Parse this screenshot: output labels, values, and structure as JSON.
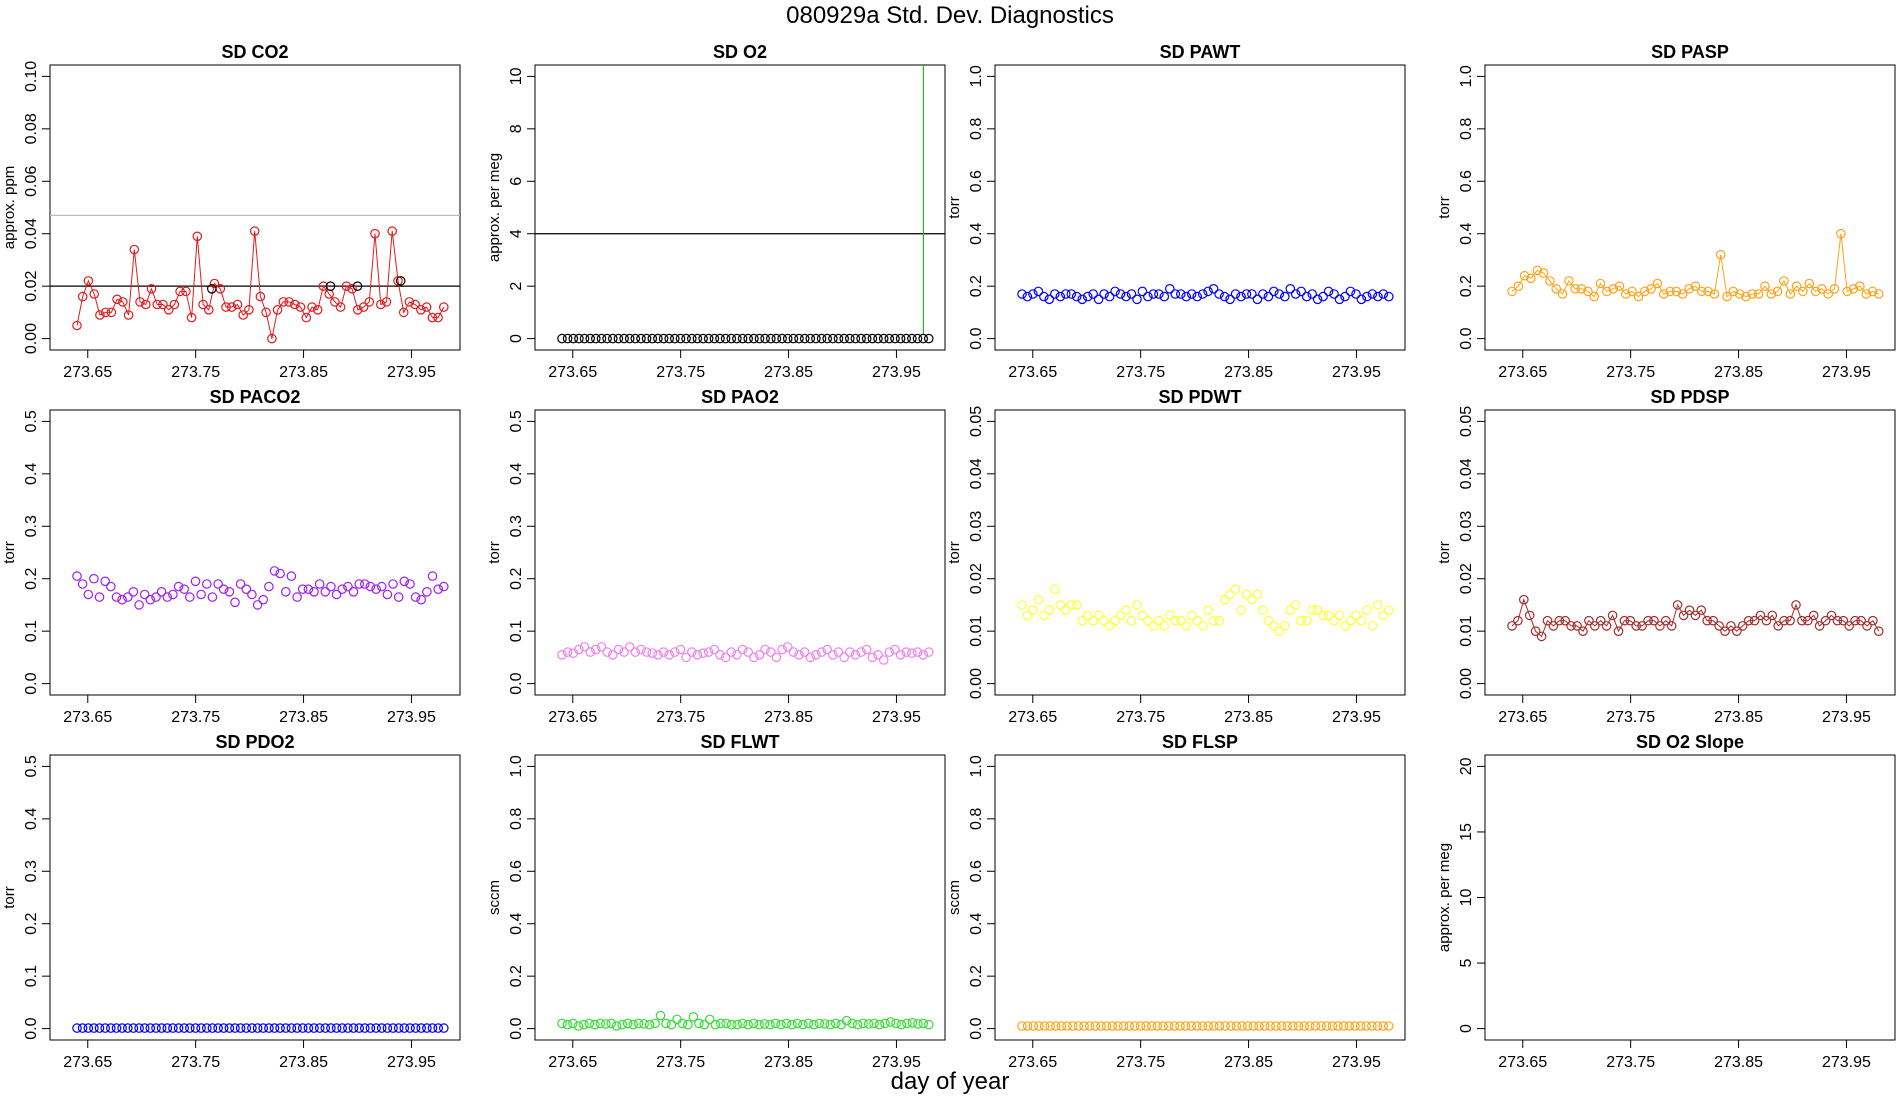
{
  "title": "080929a   Std. Dev. Diagnostics",
  "xlabel_global": "day of year",
  "x_ticks": [
    "273.65",
    "273.75",
    "273.85",
    "273.95"
  ],
  "chart_data": [
    {
      "type": "scatter",
      "title": "SD CO2",
      "ylabel": "approx. ppm",
      "ylim": [
        0,
        0.1
      ],
      "yticks": [
        "0.00",
        "0.02",
        "0.04",
        "0.06",
        "0.08",
        "0.10"
      ],
      "color": "#e41a1c",
      "connected": true,
      "hlines": [
        {
          "y": 0.02,
          "color": "#000000"
        },
        {
          "y": 0.047,
          "color": "#bbbbbb"
        }
      ],
      "values": [
        0.005,
        0.016,
        0.022,
        0.017,
        0.009,
        0.01,
        0.01,
        0.015,
        0.014,
        0.009,
        0.034,
        0.014,
        0.013,
        0.019,
        0.013,
        0.013,
        0.011,
        0.013,
        0.018,
        0.018,
        0.008,
        0.039,
        0.013,
        0.011,
        0.021,
        0.019,
        0.012,
        0.012,
        0.013,
        0.009,
        0.011,
        0.041,
        0.016,
        0.01,
        0,
        0.011,
        0.014,
        0.014,
        0.013,
        0.012,
        0.008,
        0.012,
        0.011,
        0.02,
        0.017,
        0.014,
        0.012,
        0.02,
        0.019,
        0.011,
        0.012,
        0.014,
        0.04,
        0.013,
        0.014,
        0.041,
        0.022,
        0.01,
        0.014,
        0.013,
        0.011,
        0.012,
        0.008,
        0.008,
        0.012
      ],
      "black_points": [
        [
          273.765,
          0.019
        ],
        [
          273.875,
          0.02
        ],
        [
          273.9,
          0.02
        ],
        [
          273.94,
          0.022
        ]
      ]
    },
    {
      "type": "scatter",
      "title": "SD O2",
      "ylabel": "approx. per meg",
      "ylim": [
        0,
        10
      ],
      "yticks": [
        "0",
        "2",
        "4",
        "6",
        "8",
        "10"
      ],
      "color": "#000000",
      "hlines": [
        {
          "y": 4,
          "color": "#000000"
        }
      ],
      "vline": {
        "x": 273.975,
        "color": "#33aa33"
      },
      "constant_value": 0
    },
    {
      "type": "scatter",
      "title": "SD PAWT",
      "ylabel": "torr",
      "ylim": [
        0,
        1
      ],
      "yticks": [
        "0.0",
        "0.2",
        "0.4",
        "0.6",
        "0.8",
        "1.0"
      ],
      "color": "#0000ff",
      "values": [
        0.17,
        0.16,
        0.17,
        0.18,
        0.16,
        0.15,
        0.17,
        0.16,
        0.17,
        0.17,
        0.16,
        0.15,
        0.16,
        0.17,
        0.15,
        0.17,
        0.16,
        0.18,
        0.17,
        0.16,
        0.17,
        0.15,
        0.18,
        0.16,
        0.17,
        0.17,
        0.16,
        0.19,
        0.17,
        0.17,
        0.16,
        0.17,
        0.16,
        0.17,
        0.18,
        0.19,
        0.17,
        0.16,
        0.15,
        0.17,
        0.16,
        0.17,
        0.17,
        0.15,
        0.17,
        0.16,
        0.18,
        0.17,
        0.16,
        0.19,
        0.17,
        0.18,
        0.16,
        0.17,
        0.15,
        0.16,
        0.18,
        0.17,
        0.15,
        0.16,
        0.18,
        0.17,
        0.15,
        0.16,
        0.17,
        0.16,
        0.17,
        0.16
      ]
    },
    {
      "type": "scatter",
      "title": "SD PASP",
      "ylabel": "torr",
      "ylim": [
        0,
        1
      ],
      "yticks": [
        "0.0",
        "0.2",
        "0.4",
        "0.6",
        "0.8",
        "1.0"
      ],
      "color": "#ffa31a",
      "connected": true,
      "values": [
        0.18,
        0.2,
        0.24,
        0.23,
        0.26,
        0.25,
        0.22,
        0.19,
        0.17,
        0.22,
        0.19,
        0.19,
        0.18,
        0.16,
        0.21,
        0.18,
        0.19,
        0.2,
        0.17,
        0.18,
        0.16,
        0.18,
        0.19,
        0.21,
        0.17,
        0.18,
        0.18,
        0.17,
        0.19,
        0.2,
        0.18,
        0.18,
        0.17,
        0.32,
        0.16,
        0.18,
        0.17,
        0.16,
        0.17,
        0.17,
        0.2,
        0.17,
        0.18,
        0.22,
        0.17,
        0.2,
        0.18,
        0.21,
        0.18,
        0.19,
        0.17,
        0.19,
        0.4,
        0.18,
        0.19,
        0.2,
        0.17,
        0.18,
        0.17
      ]
    },
    {
      "type": "scatter",
      "title": "SD PACO2",
      "ylabel": "torr",
      "ylim": [
        0,
        0.5
      ],
      "yticks": [
        "0.0",
        "0.1",
        "0.2",
        "0.3",
        "0.4",
        "0.5"
      ],
      "color": "#a020f0",
      "values": [
        0.205,
        0.19,
        0.17,
        0.2,
        0.165,
        0.195,
        0.185,
        0.165,
        0.16,
        0.165,
        0.175,
        0.15,
        0.17,
        0.16,
        0.165,
        0.175,
        0.165,
        0.17,
        0.185,
        0.18,
        0.165,
        0.195,
        0.17,
        0.19,
        0.165,
        0.19,
        0.18,
        0.175,
        0.155,
        0.19,
        0.18,
        0.17,
        0.15,
        0.16,
        0.185,
        0.215,
        0.21,
        0.175,
        0.205,
        0.165,
        0.18,
        0.18,
        0.175,
        0.19,
        0.175,
        0.185,
        0.17,
        0.18,
        0.185,
        0.175,
        0.19,
        0.19,
        0.185,
        0.18,
        0.185,
        0.17,
        0.19,
        0.165,
        0.195,
        0.19,
        0.165,
        0.16,
        0.175,
        0.205,
        0.18,
        0.185
      ]
    },
    {
      "type": "scatter",
      "title": "SD PAO2",
      "ylabel": "torr",
      "ylim": [
        0,
        0.5
      ],
      "yticks": [
        "0.0",
        "0.1",
        "0.2",
        "0.3",
        "0.4",
        "0.5"
      ],
      "color": "#ee82ee",
      "values": [
        0.055,
        0.06,
        0.058,
        0.065,
        0.07,
        0.06,
        0.065,
        0.07,
        0.06,
        0.055,
        0.065,
        0.06,
        0.07,
        0.06,
        0.065,
        0.06,
        0.058,
        0.055,
        0.06,
        0.055,
        0.06,
        0.065,
        0.05,
        0.06,
        0.055,
        0.058,
        0.06,
        0.065,
        0.055,
        0.05,
        0.06,
        0.055,
        0.065,
        0.06,
        0.05,
        0.055,
        0.065,
        0.06,
        0.05,
        0.065,
        0.07,
        0.06,
        0.055,
        0.06,
        0.05,
        0.055,
        0.06,
        0.065,
        0.055,
        0.06,
        0.05,
        0.06,
        0.055,
        0.06,
        0.065,
        0.05,
        0.055,
        0.045,
        0.06,
        0.065,
        0.055,
        0.06,
        0.058,
        0.06,
        0.055,
        0.06
      ]
    },
    {
      "type": "scatter",
      "title": "SD PDWT",
      "ylabel": "torr",
      "ylim": [
        0,
        0.05
      ],
      "yticks": [
        "0.00",
        "0.01",
        "0.02",
        "0.03",
        "0.04",
        "0.05"
      ],
      "color": "#ffff33",
      "values": [
        0.015,
        0.013,
        0.014,
        0.016,
        0.013,
        0.014,
        0.018,
        0.015,
        0.014,
        0.015,
        0.015,
        0.012,
        0.013,
        0.012,
        0.013,
        0.012,
        0.011,
        0.012,
        0.013,
        0.014,
        0.012,
        0.015,
        0.013,
        0.012,
        0.011,
        0.012,
        0.011,
        0.013,
        0.012,
        0.012,
        0.011,
        0.013,
        0.012,
        0.011,
        0.014,
        0.012,
        0.012,
        0.016,
        0.017,
        0.018,
        0.014,
        0.017,
        0.016,
        0.017,
        0.014,
        0.012,
        0.011,
        0.01,
        0.011,
        0.014,
        0.015,
        0.012,
        0.012,
        0.014,
        0.014,
        0.013,
        0.013,
        0.012,
        0.013,
        0.011,
        0.012,
        0.013,
        0.012,
        0.014,
        0.011,
        0.015,
        0.013,
        0.014
      ]
    },
    {
      "type": "scatter",
      "title": "SD PDSP",
      "ylabel": "torr",
      "ylim": [
        0,
        0.05
      ],
      "yticks": [
        "0.00",
        "0.01",
        "0.02",
        "0.03",
        "0.04",
        "0.05"
      ],
      "color": "#a52a2a",
      "connected": true,
      "values": [
        0.011,
        0.012,
        0.016,
        0.013,
        0.01,
        0.009,
        0.012,
        0.011,
        0.012,
        0.012,
        0.011,
        0.011,
        0.01,
        0.012,
        0.011,
        0.012,
        0.011,
        0.013,
        0.01,
        0.012,
        0.012,
        0.011,
        0.011,
        0.012,
        0.012,
        0.011,
        0.012,
        0.011,
        0.015,
        0.013,
        0.014,
        0.013,
        0.014,
        0.012,
        0.012,
        0.011,
        0.01,
        0.011,
        0.01,
        0.011,
        0.012,
        0.012,
        0.013,
        0.012,
        0.013,
        0.011,
        0.012,
        0.012,
        0.015,
        0.012,
        0.012,
        0.013,
        0.011,
        0.012,
        0.013,
        0.012,
        0.012,
        0.011,
        0.012,
        0.012,
        0.011,
        0.012,
        0.01
      ]
    },
    {
      "type": "scatter",
      "title": "SD PDO2",
      "ylabel": "torr",
      "ylim": [
        0,
        0.5
      ],
      "yticks": [
        "0.0",
        "0.1",
        "0.2",
        "0.3",
        "0.4",
        "0.5"
      ],
      "color": "#0000ff",
      "constant_value": 0.001
    },
    {
      "type": "scatter",
      "title": "SD FLWT",
      "ylabel": "sccm",
      "ylim": [
        0,
        1
      ],
      "yticks": [
        "0.0",
        "0.2",
        "0.4",
        "0.6",
        "0.8",
        "1.0"
      ],
      "color": "#33dd33",
      "values": [
        0.02,
        0.015,
        0.02,
        0.01,
        0.015,
        0.02,
        0.015,
        0.02,
        0.018,
        0.02,
        0.01,
        0.015,
        0.02,
        0.015,
        0.02,
        0.018,
        0.015,
        0.02,
        0.05,
        0.02,
        0.015,
        0.035,
        0.02,
        0.015,
        0.045,
        0.02,
        0.015,
        0.035,
        0.015,
        0.02,
        0.02,
        0.015,
        0.015,
        0.02,
        0.015,
        0.02,
        0.015,
        0.018,
        0.015,
        0.02,
        0.015,
        0.02,
        0.015,
        0.02,
        0.015,
        0.02,
        0.015,
        0.02,
        0.018,
        0.015,
        0.02,
        0.015,
        0.03,
        0.02,
        0.015,
        0.02,
        0.018,
        0.02,
        0.015,
        0.02,
        0.025,
        0.02,
        0.015,
        0.02,
        0.022,
        0.018,
        0.02,
        0.015
      ]
    },
    {
      "type": "scatter",
      "title": "SD FLSP",
      "ylabel": "sccm",
      "ylim": [
        0,
        1
      ],
      "yticks": [
        "0.0",
        "0.2",
        "0.4",
        "0.6",
        "0.8",
        "1.0"
      ],
      "color": "#ffa31a",
      "constant_value": 0.01
    },
    {
      "type": "scatter",
      "title": "SD O2 Slope",
      "ylabel": "approx. per meg",
      "ylim": [
        0,
        20
      ],
      "yticks": [
        "0",
        "5",
        "10",
        "15",
        "20"
      ],
      "color": "#000000"
    }
  ]
}
